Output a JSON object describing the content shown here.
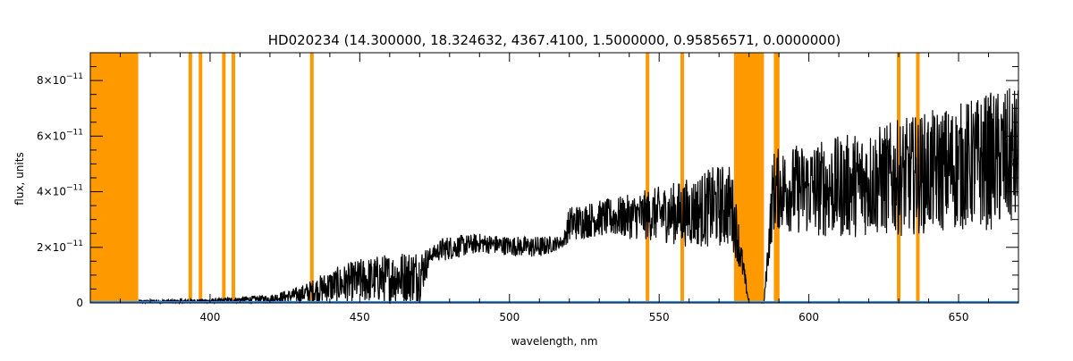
{
  "chart_data": {
    "type": "line",
    "title": "HD020234    (14.300000, 18.324632, 4367.4100, 1.5000000, 0.95856571, 0.0000000)",
    "xlabel": "wavelength, nm",
    "ylabel": "flux, units",
    "xlim": [
      360,
      670
    ],
    "ylim": [
      0,
      9e-11
    ],
    "x_ticks": [
      {
        "value": 400,
        "label": "400"
      },
      {
        "value": 450,
        "label": "450"
      },
      {
        "value": 500,
        "label": "500"
      },
      {
        "value": 550,
        "label": "550"
      },
      {
        "value": 600,
        "label": "600"
      },
      {
        "value": 650,
        "label": "650"
      }
    ],
    "y_ticks": [
      {
        "value": 0,
        "label": "0",
        "exp": ""
      },
      {
        "value": 2e-11,
        "label": "2×10",
        "exp": "−11"
      },
      {
        "value": 4e-11,
        "label": "4×10",
        "exp": "−11"
      },
      {
        "value": 6e-11,
        "label": "6×10",
        "exp": "−11"
      },
      {
        "value": 8e-11,
        "label": "8×10",
        "exp": "−11"
      }
    ],
    "masked_regions": [
      [
        360,
        376
      ],
      [
        575,
        585
      ]
    ],
    "masked_lines": [
      393.4,
      396.8,
      404.6,
      407.8,
      434.0,
      546.1,
      557.7,
      588.9,
      589.6,
      630.0,
      636.4
    ],
    "colors": {
      "spectrum": "#000000",
      "mask": "#ff9900",
      "baseline": "#1a8cff",
      "axes": "#000000"
    },
    "grid": false,
    "spectrum_envelope": {
      "x": [
        376,
        400,
        420,
        430,
        440,
        450,
        460,
        470,
        474,
        478,
        490,
        500,
        510,
        518,
        520,
        530,
        540,
        550,
        560,
        570,
        574,
        576,
        580,
        585,
        588,
        590,
        600,
        610,
        620,
        630,
        640,
        650,
        660,
        670
      ],
      "low": [
        0,
        0,
        0,
        0,
        0,
        0,
        0,
        0,
        1.5e-11,
        1.5e-11,
        1.8e-11,
        1.7e-11,
        1.6e-11,
        2e-11,
        2.2e-11,
        2.4e-11,
        2.3e-11,
        2.2e-11,
        2e-11,
        2e-11,
        2e-11,
        1.5e-11,
        0,
        0,
        2.5e-11,
        2.6e-11,
        2.4e-11,
        2.3e-11,
        2.4e-11,
        2.4e-11,
        2.5e-11,
        2.6e-11,
        2.6e-11,
        2.6e-11
      ],
      "high": [
        1e-12,
        1.5e-12,
        3e-12,
        6e-12,
        1.2e-11,
        1.6e-11,
        1.8e-11,
        2e-11,
        2e-11,
        2.4e-11,
        2.5e-11,
        2.4e-11,
        2.4e-11,
        2.4e-11,
        3.5e-11,
        3.7e-11,
        3.9e-11,
        4.2e-11,
        4.5e-11,
        5e-11,
        5e-11,
        3.5e-11,
        0,
        0,
        5.5e-11,
        5.6e-11,
        5.8e-11,
        6e-11,
        6.3e-11,
        6.6e-11,
        6.9e-11,
        7.2e-11,
        7.6e-11,
        7.8e-11
      ]
    }
  }
}
